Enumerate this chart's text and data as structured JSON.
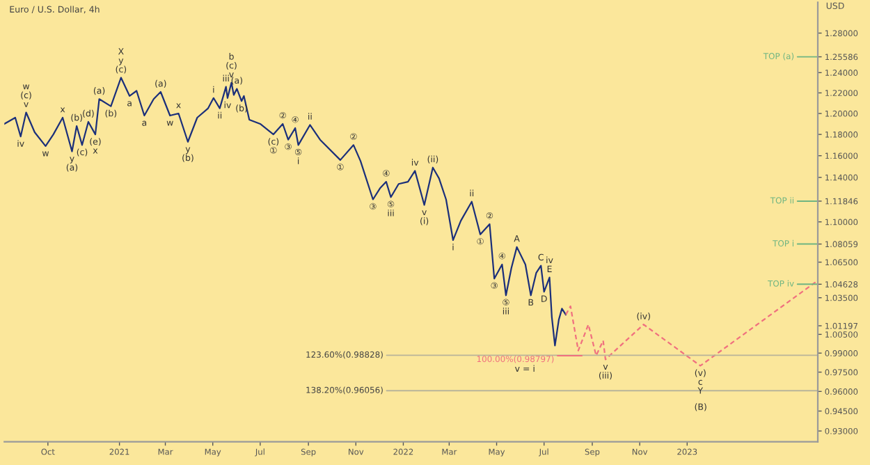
{
  "chart_data": {
    "type": "line",
    "title": "Euro / U.S. Dollar, 4h",
    "ylabel": "USD",
    "log": "y",
    "marker": "none",
    "xlim": [
      "2020-08-06",
      "2023-06-18"
    ],
    "ylim": [
      0.922,
      1.312
    ],
    "xticks": [
      {
        "value": "2020-10-01",
        "label": "Oct"
      },
      {
        "value": "2021-01-01",
        "label": "2021"
      },
      {
        "value": "2021-03-01",
        "label": "Mar"
      },
      {
        "value": "2021-05-01",
        "label": "May"
      },
      {
        "value": "2021-07-01",
        "label": "Jul"
      },
      {
        "value": "2021-09-01",
        "label": "Sep"
      },
      {
        "value": "2021-11-01",
        "label": "Nov"
      },
      {
        "value": "2022-01-01",
        "label": "2022"
      },
      {
        "value": "2022-03-01",
        "label": "Mar"
      },
      {
        "value": "2022-05-01",
        "label": "May"
      },
      {
        "value": "2022-07-01",
        "label": "Jul"
      },
      {
        "value": "2022-09-01",
        "label": "Sep"
      },
      {
        "value": "2022-11-01",
        "label": "Nov"
      },
      {
        "value": "2023-01-01",
        "label": "2023"
      }
    ],
    "yticks": [
      {
        "value": 1.28,
        "label": "1.28000"
      },
      {
        "value": 1.25586,
        "label": "1.25586"
      },
      {
        "value": 1.24,
        "label": "1.24000"
      },
      {
        "value": 1.22,
        "label": "1.22000"
      },
      {
        "value": 1.2,
        "label": "1.20000"
      },
      {
        "value": 1.18,
        "label": "1.18000"
      },
      {
        "value": 1.16,
        "label": "1.16000"
      },
      {
        "value": 1.14,
        "label": "1.14000"
      },
      {
        "value": 1.11846,
        "label": "1.11846"
      },
      {
        "value": 1.1,
        "label": "1.10000"
      },
      {
        "value": 1.08059,
        "label": "1.08059"
      },
      {
        "value": 1.065,
        "label": "1.06500"
      },
      {
        "value": 1.04628,
        "label": "1.04628"
      },
      {
        "value": 1.035,
        "label": "1.03500"
      },
      {
        "value": 1.01197,
        "label": "1.01197"
      },
      {
        "value": 1.005,
        "label": "1.00500"
      },
      {
        "value": 0.99,
        "label": "0.99000"
      },
      {
        "value": 0.975,
        "label": "0.97500"
      },
      {
        "value": 0.96,
        "label": "0.96000"
      },
      {
        "value": 0.945,
        "label": "0.94500"
      },
      {
        "value": 0.93,
        "label": "0.93000"
      }
    ],
    "series": [
      {
        "color": "#1b2f7a",
        "line_style": "solid",
        "x": [
          "2020-08-06",
          "2020-08-20",
          "2020-08-27",
          "2020-09-03",
          "2020-09-14",
          "2020-09-28",
          "2020-10-08",
          "2020-10-20",
          "2020-11-01",
          "2020-11-07",
          "2020-11-14",
          "2020-11-22",
          "2020-12-01",
          "2020-12-06",
          "2020-12-21",
          "2021-01-03",
          "2021-01-14",
          "2021-01-23",
          "2021-02-02",
          "2021-02-14",
          "2021-02-23",
          "2021-03-07",
          "2021-03-18",
          "2021-03-30",
          "2021-04-11",
          "2021-04-25",
          "2021-05-02",
          "2021-05-10",
          "2021-05-18",
          "2021-05-20",
          "2021-05-25",
          "2021-05-28",
          "2021-06-01",
          "2021-06-07",
          "2021-06-10",
          "2021-06-17",
          "2021-07-01",
          "2021-07-18",
          "2021-07-30",
          "2021-08-06",
          "2021-08-15",
          "2021-08-19",
          "2021-09-03",
          "2021-09-16",
          "2021-10-12",
          "2021-10-29",
          "2021-11-07",
          "2021-11-23",
          "2021-12-02",
          "2021-12-10",
          "2021-12-16",
          "2021-12-26",
          "2022-01-07",
          "2022-01-16",
          "2022-01-28",
          "2022-02-08",
          "2022-02-16",
          "2022-02-25",
          "2022-03-06",
          "2022-03-16",
          "2022-03-30",
          "2022-04-10",
          "2022-04-22",
          "2022-04-28",
          "2022-05-08",
          "2022-05-13",
          "2022-05-20",
          "2022-05-27",
          "2022-06-07",
          "2022-06-14",
          "2022-06-21",
          "2022-06-27",
          "2022-07-01",
          "2022-07-08",
          "2022-07-11",
          "2022-07-15",
          "2022-07-20",
          "2022-07-24",
          "2022-07-29"
        ],
        "values": [
          1.19,
          1.196,
          1.178,
          1.201,
          1.182,
          1.169,
          1.18,
          1.196,
          1.164,
          1.188,
          1.17,
          1.192,
          1.18,
          1.214,
          1.207,
          1.235,
          1.217,
          1.222,
          1.198,
          1.214,
          1.221,
          1.198,
          1.2,
          1.173,
          1.196,
          1.205,
          1.215,
          1.205,
          1.226,
          1.215,
          1.23,
          1.218,
          1.224,
          1.212,
          1.217,
          1.194,
          1.19,
          1.18,
          1.19,
          1.175,
          1.186,
          1.17,
          1.189,
          1.175,
          1.156,
          1.17,
          1.155,
          1.12,
          1.13,
          1.136,
          1.122,
          1.134,
          1.136,
          1.146,
          1.115,
          1.149,
          1.139,
          1.12,
          1.084,
          1.101,
          1.118,
          1.089,
          1.098,
          1.051,
          1.063,
          1.037,
          1.06,
          1.078,
          1.063,
          1.037,
          1.056,
          1.062,
          1.04,
          1.052,
          1.019,
          0.996,
          1.017,
          1.026,
          1.021
        ]
      },
      {
        "color": "#f0707f",
        "line_style": "dashed",
        "x": [
          "2022-07-29",
          "2022-08-04",
          "2022-08-14",
          "2022-08-27",
          "2022-09-06",
          "2022-09-15",
          "2022-09-18",
          "2022-11-06",
          "2023-01-18",
          "2023-06-15"
        ],
        "values": [
          1.021,
          1.028,
          0.992,
          1.013,
          0.988,
          1.0,
          0.985,
          1.013,
          0.98,
          1.048
        ]
      }
    ],
    "ref_lines": [
      {
        "axis": "y",
        "value": 0.98828,
        "label": "123.60%(0.98828)",
        "color": "#b8b49a"
      },
      {
        "axis": "y",
        "value": 0.96056,
        "label": "138.20%(0.96056)",
        "color": "#b8b49a"
      },
      {
        "axis": "y",
        "value": 0.98797,
        "label": "100.00%(0.98797)",
        "color": "#f0707f"
      },
      {
        "axis": "y",
        "value": 1.25586,
        "label": "TOP (a)",
        "color": "#6fb582"
      },
      {
        "axis": "y",
        "value": 1.11846,
        "label": "TOP ii",
        "color": "#6fb582"
      },
      {
        "axis": "y",
        "value": 1.08059,
        "label": "TOP i",
        "color": "#6fb582"
      },
      {
        "axis": "y",
        "value": 1.04628,
        "label": "TOP iv",
        "color": "#6fb582"
      }
    ],
    "annotations": [
      {
        "text": "w",
        "x": "2020-09-03",
        "y": 1.201
      },
      {
        "text": "(c)",
        "x": "2020-09-03",
        "y": 1.201
      },
      {
        "text": "v",
        "x": "2020-09-03",
        "y": 1.201
      },
      {
        "text": "iv",
        "x": "2020-08-27",
        "y": 1.178
      },
      {
        "text": "w",
        "x": "2020-09-28",
        "y": 1.169
      },
      {
        "text": "x",
        "x": "2020-10-20",
        "y": 1.196
      },
      {
        "text": "y",
        "x": "2020-11-01",
        "y": 1.164
      },
      {
        "text": "(a)",
        "x": "2020-11-01",
        "y": 1.164
      },
      {
        "text": "(b)",
        "x": "2020-11-07",
        "y": 1.188
      },
      {
        "text": "(c)",
        "x": "2020-11-14",
        "y": 1.17
      },
      {
        "text": "(d)",
        "x": "2020-11-22",
        "y": 1.192
      },
      {
        "text": "(e)",
        "x": "2020-12-01",
        "y": 1.18
      },
      {
        "text": "x",
        "x": "2020-12-01",
        "y": 1.18
      },
      {
        "text": "(a)",
        "x": "2020-12-06",
        "y": 1.214
      },
      {
        "text": "(b)",
        "x": "2020-12-21",
        "y": 1.207
      },
      {
        "text": "X",
        "x": "2021-01-03",
        "y": 1.235
      },
      {
        "text": "y",
        "x": "2021-01-03",
        "y": 1.235
      },
      {
        "text": "(c)",
        "x": "2021-01-03",
        "y": 1.235
      },
      {
        "text": "a",
        "x": "2021-01-14",
        "y": 1.217
      },
      {
        "text": "a",
        "x": "2021-02-02",
        "y": 1.198
      },
      {
        "text": "(a)",
        "x": "2021-02-23",
        "y": 1.221
      },
      {
        "text": "w",
        "x": "2021-03-07",
        "y": 1.198
      },
      {
        "text": "x",
        "x": "2021-03-18",
        "y": 1.2
      },
      {
        "text": "y",
        "x": "2021-03-30",
        "y": 1.173
      },
      {
        "text": "(b)",
        "x": "2021-03-30",
        "y": 1.173
      },
      {
        "text": "i",
        "x": "2021-05-02",
        "y": 1.215
      },
      {
        "text": "ii",
        "x": "2021-05-10",
        "y": 1.205
      },
      {
        "text": "iii",
        "x": "2021-05-18",
        "y": 1.226
      },
      {
        "text": "iv",
        "x": "2021-05-20",
        "y": 1.215
      },
      {
        "text": "b",
        "x": "2021-05-25",
        "y": 1.23
      },
      {
        "text": "(c)",
        "x": "2021-05-25",
        "y": 1.23
      },
      {
        "text": "v",
        "x": "2021-05-25",
        "y": 1.23
      },
      {
        "text": "(a)",
        "x": "2021-06-01",
        "y": 1.224
      },
      {
        "text": "(b)",
        "x": "2021-06-07",
        "y": 1.212
      },
      {
        "text": "(c)",
        "x": "2021-07-18",
        "y": 1.18
      },
      {
        "text": "①",
        "x": "2021-07-18",
        "y": 1.18
      },
      {
        "text": "②",
        "x": "2021-07-30",
        "y": 1.19
      },
      {
        "text": "③",
        "x": "2021-08-06",
        "y": 1.175
      },
      {
        "text": "④",
        "x": "2021-08-15",
        "y": 1.186
      },
      {
        "text": "⑤",
        "x": "2021-08-19",
        "y": 1.17
      },
      {
        "text": "i",
        "x": "2021-08-19",
        "y": 1.17
      },
      {
        "text": "ii",
        "x": "2021-09-03",
        "y": 1.189
      },
      {
        "text": "①",
        "x": "2021-10-12",
        "y": 1.156
      },
      {
        "text": "②",
        "x": "2021-10-29",
        "y": 1.17
      },
      {
        "text": "③",
        "x": "2021-11-23",
        "y": 1.12
      },
      {
        "text": "④",
        "x": "2021-12-10",
        "y": 1.136
      },
      {
        "text": "⑤",
        "x": "2021-12-16",
        "y": 1.122
      },
      {
        "text": "iii",
        "x": "2021-12-16",
        "y": 1.122
      },
      {
        "text": "iv",
        "x": "2022-01-16",
        "y": 1.146
      },
      {
        "text": "v",
        "x": "2022-01-28",
        "y": 1.115
      },
      {
        "text": "(i)",
        "x": "2022-01-28",
        "y": 1.115
      },
      {
        "text": "(ii)",
        "x": "2022-02-08",
        "y": 1.149
      },
      {
        "text": "i",
        "x": "2022-03-06",
        "y": 1.084
      },
      {
        "text": "ii",
        "x": "2022-03-30",
        "y": 1.118
      },
      {
        "text": "①",
        "x": "2022-04-10",
        "y": 1.089
      },
      {
        "text": "②",
        "x": "2022-04-22",
        "y": 1.098
      },
      {
        "text": "③",
        "x": "2022-04-28",
        "y": 1.051
      },
      {
        "text": "④",
        "x": "2022-05-08",
        "y": 1.063
      },
      {
        "text": "⑤",
        "x": "2022-05-13",
        "y": 1.037
      },
      {
        "text": "iii",
        "x": "2022-05-13",
        "y": 1.037
      },
      {
        "text": "A",
        "x": "2022-05-27",
        "y": 1.078
      },
      {
        "text": "B",
        "x": "2022-06-14",
        "y": 1.037
      },
      {
        "text": "C",
        "x": "2022-06-27",
        "y": 1.062
      },
      {
        "text": "D",
        "x": "2022-07-01",
        "y": 1.04
      },
      {
        "text": "iv",
        "x": "2022-07-08",
        "y": 1.052
      },
      {
        "text": "E",
        "x": "2022-07-08",
        "y": 1.052
      },
      {
        "text": "v",
        "x": "2022-09-18",
        "y": 0.985
      },
      {
        "text": "(iii)",
        "x": "2022-09-18",
        "y": 0.985
      },
      {
        "text": "(iv)",
        "x": "2022-11-06",
        "y": 1.013
      },
      {
        "text": "(v)",
        "x": "2023-01-18",
        "y": 0.98
      },
      {
        "text": "c",
        "x": "2023-01-18",
        "y": 0.98
      },
      {
        "text": "Y",
        "x": "2023-01-18",
        "y": 0.98
      },
      "(B)",
      "v = i"
    ]
  }
}
